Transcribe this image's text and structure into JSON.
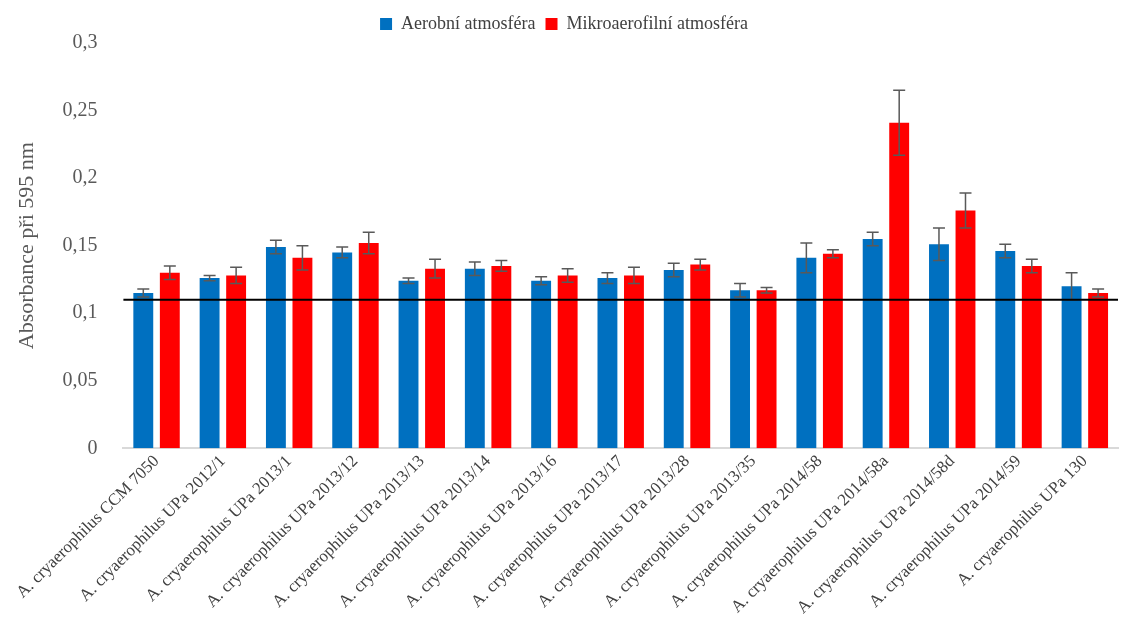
{
  "chart_data": {
    "type": "bar",
    "ylabel": "Absorbance při 595 nm",
    "categories": [
      "A. cryaerophilus CCM 7050",
      "A. cryaerophilus UPa 2012/1",
      "A. cryaerophilus UPa 2013/1",
      "A. cryaerophilus UPa 2013/12",
      "A. cryaerophilus UPa 2013/13",
      "A. cryaerophilus UPa 2013/14",
      "A. cryaerophilus UPa 2013/16",
      "A. cryaerophilus UPa 2013/17",
      "A. cryaerophilus UPa 2013/28",
      "A. cryaerophilus UPa 2013/35",
      "A. cryaerophilus UPa 2014/58",
      "A. cryaerophilus UPa 2014/58a",
      "A. cryaerophilus UPa 2014/58d",
      "A. cryaerophilus UPa 2014/59",
      "A. cryaerophilus UPa 130"
    ],
    "series": [
      {
        "name": "Aerobní atmosféra",
        "color": "#0070c0",
        "values": [
          0.115,
          0.126,
          0.149,
          0.145,
          0.124,
          0.133,
          0.124,
          0.126,
          0.132,
          0.117,
          0.141,
          0.155,
          0.151,
          0.146,
          0.12
        ],
        "errors": [
          0.003,
          0.002,
          0.005,
          0.004,
          0.002,
          0.005,
          0.003,
          0.004,
          0.005,
          0.005,
          0.011,
          0.005,
          0.012,
          0.005,
          0.01
        ]
      },
      {
        "name": "Mikroaerofilní atmosféra",
        "color": "#ff0000",
        "values": [
          0.13,
          0.128,
          0.141,
          0.152,
          0.133,
          0.135,
          0.128,
          0.128,
          0.136,
          0.117,
          0.144,
          0.241,
          0.176,
          0.135,
          0.115
        ],
        "errors": [
          0.005,
          0.006,
          0.009,
          0.008,
          0.007,
          0.004,
          0.005,
          0.006,
          0.004,
          0.002,
          0.003,
          0.024,
          0.013,
          0.005,
          0.003
        ]
      }
    ],
    "ylim": [
      0,
      0.3
    ],
    "yticks": [
      0,
      {
        "value": 0.05,
        "label": "0,05"
      },
      {
        "value": 0.1,
        "label": "0,1"
      },
      {
        "value": 0.15,
        "label": "0,15"
      },
      {
        "value": 0.2,
        "label": "0,2"
      },
      {
        "value": 0.25,
        "label": "0,25"
      },
      {
        "value": 0.3,
        "label": "0,3"
      }
    ],
    "ref_lines": [
      {
        "axis": "y",
        "value": 0.11,
        "color": "#000000"
      }
    ],
    "grid": false,
    "legend": "top"
  }
}
